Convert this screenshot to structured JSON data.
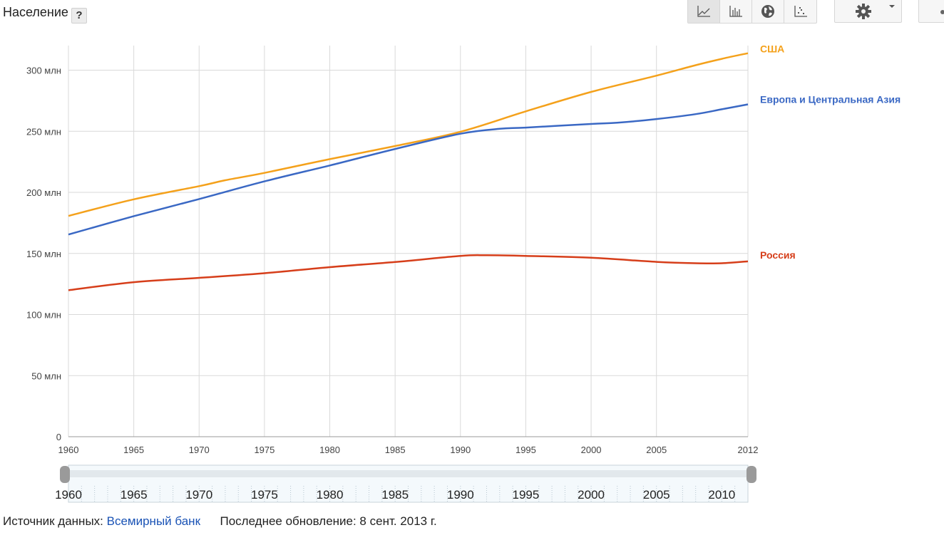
{
  "header": {
    "title": "Население",
    "help_label": "?"
  },
  "toolbar": {
    "buttons": [
      {
        "icon": "line-chart-icon",
        "active": true
      },
      {
        "icon": "bar-chart-icon",
        "active": false
      },
      {
        "icon": "globe-icon",
        "active": false
      },
      {
        "icon": "scatter-chart-icon",
        "active": false
      }
    ],
    "settings_icon": "gear-icon"
  },
  "colors": {
    "usa": "#f4a11b",
    "europe": "#3a68c4",
    "russia": "#d63e1a",
    "grid": "#d9d9d9"
  },
  "chart_data": {
    "type": "line",
    "title": "",
    "xlabel": "",
    "ylabel": "",
    "xlim": [
      1960,
      2012
    ],
    "ylim": [
      0,
      320
    ],
    "y_ticks": [
      0,
      50,
      100,
      150,
      200,
      250,
      300
    ],
    "y_tick_labels": [
      "0",
      "50 млн",
      "100 млн",
      "150 млн",
      "200 млн",
      "250 млн",
      "300 млн"
    ],
    "x_ticks": [
      1960,
      1965,
      1970,
      1975,
      1980,
      1985,
      1990,
      1995,
      2000,
      2005,
      2012
    ],
    "x_tick_labels": [
      "1960",
      "1965",
      "1970",
      "1975",
      "1980",
      "1985",
      "1990",
      "1995",
      "2000",
      "2005",
      "2012"
    ],
    "grid": true,
    "legend": "right (labels at line ends)",
    "series": [
      {
        "name": "США",
        "color": "#f4a11b",
        "x": [
          1960,
          1965,
          1970,
          1972,
          1975,
          1980,
          1985,
          1990,
          1995,
          2000,
          2005,
          2008,
          2010,
          2012
        ],
        "values": [
          180.7,
          194.3,
          205.1,
          209.9,
          215.9,
          227.2,
          237.9,
          249.6,
          266.3,
          282.2,
          295.5,
          304.1,
          309.3,
          313.9
        ]
      },
      {
        "name": "Европа и Центральная Азия",
        "color": "#3a68c4",
        "x": [
          1960,
          1965,
          1970,
          1975,
          1980,
          1985,
          1990,
          1993,
          1995,
          2000,
          2002,
          2005,
          2008,
          2010,
          2012
        ],
        "values": [
          165.5,
          180.5,
          194.5,
          209.0,
          222.0,
          235.5,
          248.0,
          252.0,
          253.0,
          256.0,
          257.0,
          260.0,
          264.0,
          268.0,
          272.0
        ]
      },
      {
        "name": "Россия",
        "color": "#d63e1a",
        "x": [
          1960,
          1965,
          1970,
          1975,
          1980,
          1985,
          1990,
          1992,
          1995,
          2000,
          2005,
          2008,
          2010,
          2012
        ],
        "values": [
          119.9,
          126.5,
          130.0,
          133.8,
          138.8,
          143.0,
          148.0,
          148.5,
          148.0,
          146.5,
          143.1,
          142.0,
          142.0,
          143.5
        ]
      }
    ],
    "range_slider": {
      "from": 1960,
      "to": 2012,
      "tick_labels": [
        "1960",
        "1965",
        "1970",
        "1975",
        "1980",
        "1985",
        "1990",
        "1995",
        "2000",
        "2005",
        "2010"
      ]
    }
  },
  "footer": {
    "source_label": "Источник данных:",
    "source_link": "Всемирный банк",
    "updated_label": "Последнее обновление: 8 сент. 2013 г."
  }
}
